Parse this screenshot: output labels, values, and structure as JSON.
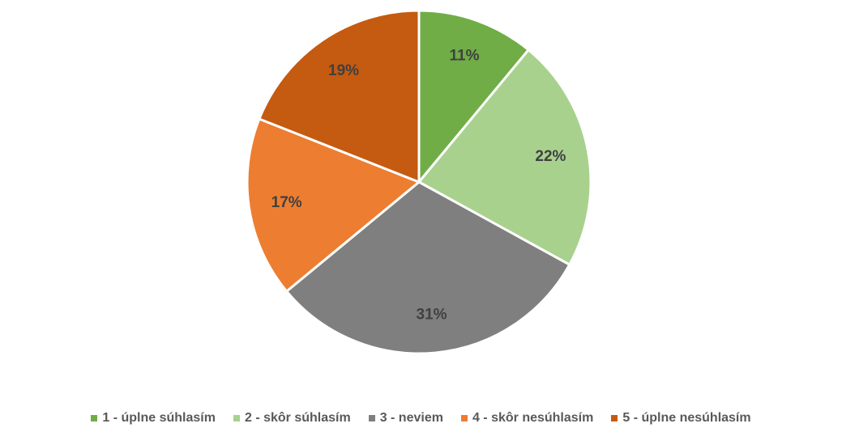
{
  "chart_data": {
    "type": "pie",
    "categories": [
      "1 - úplne súhlasím",
      "2 - skôr súhlasím",
      "3 - neviem",
      "4 - skôr nesúhlasím",
      "5 - úplne nesúhlasím"
    ],
    "values": [
      11,
      22,
      31,
      17,
      19
    ],
    "value_labels": [
      "11%",
      "22%",
      "31%",
      "17%",
      "19%"
    ],
    "colors": [
      "#70ad47",
      "#a9d18e",
      "#7f7f7f",
      "#ed7d31",
      "#c55a11"
    ],
    "legend": "bottom"
  }
}
